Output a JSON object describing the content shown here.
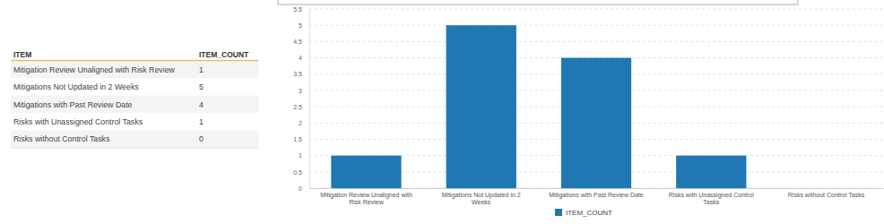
{
  "chart_data": {
    "type": "bar",
    "categories": [
      "Mitigation Review Unaligned with Risk Review",
      "Mitigations Not Updated in 2 Weeks",
      "Mitigations with Past Review Date",
      "Risks with Unassigned Control Tasks",
      "Risks without Control Tasks"
    ],
    "series": [
      {
        "name": "ITEM_COUNT",
        "color": "#1f77b4",
        "values": [
          1,
          5,
          4,
          1,
          0
        ]
      }
    ],
    "ylim": [
      0,
      5.5
    ],
    "yticks": [
      0,
      0.5,
      1,
      1.5,
      2,
      2.5,
      3,
      3.5,
      4,
      4.5,
      5,
      5.5
    ],
    "grid": true,
    "legend": "bottom"
  },
  "table": {
    "header": [
      "ITEM",
      "ITEM_COUNT"
    ],
    "rows": [
      [
        "Mitigation Review Unaligned with Risk Review",
        1
      ],
      [
        "Mitigations Not Updated in 2 Weeks",
        5
      ],
      [
        "Mitigations with Past Review Date",
        4
      ],
      [
        "Risks with Unassigned Control Tasks",
        1
      ],
      [
        "Risks without Control Tasks",
        0
      ]
    ]
  }
}
